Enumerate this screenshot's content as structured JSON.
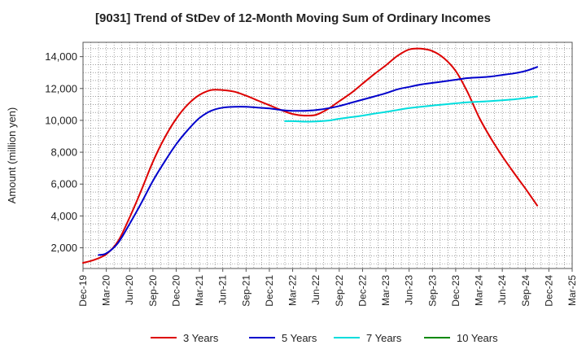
{
  "chart_data": {
    "type": "line",
    "title": "[9031]  Trend of StDev of 12-Month Moving Sum of Ordinary Incomes",
    "xlabel": "",
    "ylabel": "Amount (million yen)",
    "ylim": [
      700,
      14900
    ],
    "yticks": [
      2000,
      4000,
      6000,
      8000,
      10000,
      12000,
      14000
    ],
    "ytick_labels": [
      "2,000",
      "4,000",
      "6,000",
      "8,000",
      "10,000",
      "12,000",
      "14,000"
    ],
    "x_tick_labels": [
      "Dec-19",
      "Mar-20",
      "Jun-20",
      "Sep-20",
      "Dec-20",
      "Mar-21",
      "Jun-21",
      "Sep-21",
      "Dec-21",
      "Mar-22",
      "Jun-22",
      "Sep-22",
      "Dec-22",
      "Mar-23",
      "Jun-23",
      "Sep-23",
      "Dec-23",
      "Mar-24",
      "Jun-24",
      "Sep-24",
      "Dec-24",
      "Mar-25"
    ],
    "grid": true,
    "legend_position": "bottom",
    "series": [
      {
        "name": "3 Years",
        "color": "#dd0000",
        "points": [
          [
            0,
            1050
          ],
          [
            0.5,
            1250
          ],
          [
            1,
            1600
          ],
          [
            1.5,
            2400
          ],
          [
            2,
            3900
          ],
          [
            2.5,
            5600
          ],
          [
            3,
            7400
          ],
          [
            3.5,
            8900
          ],
          [
            4,
            10100
          ],
          [
            4.5,
            11000
          ],
          [
            5,
            11600
          ],
          [
            5.5,
            11900
          ],
          [
            6,
            11900
          ],
          [
            6.5,
            11800
          ],
          [
            7,
            11550
          ],
          [
            7.5,
            11250
          ],
          [
            8,
            10950
          ],
          [
            8.5,
            10650
          ],
          [
            9,
            10400
          ],
          [
            9.5,
            10300
          ],
          [
            10,
            10350
          ],
          [
            10.5,
            10700
          ],
          [
            11,
            11200
          ],
          [
            11.5,
            11700
          ],
          [
            12,
            12300
          ],
          [
            12.5,
            12900
          ],
          [
            13,
            13450
          ],
          [
            13.5,
            14050
          ],
          [
            14,
            14450
          ],
          [
            14.5,
            14500
          ],
          [
            15,
            14350
          ],
          [
            15.5,
            13900
          ],
          [
            16,
            13100
          ],
          [
            16.5,
            11800
          ],
          [
            17,
            10200
          ],
          [
            17.5,
            8900
          ],
          [
            18,
            7750
          ],
          [
            18.5,
            6700
          ],
          [
            19,
            5700
          ],
          [
            19.5,
            4650
          ]
        ]
      },
      {
        "name": "5 Years",
        "color": "#0000cc",
        "points": [
          [
            0.67,
            1550
          ],
          [
            1,
            1650
          ],
          [
            1.5,
            2300
          ],
          [
            2,
            3500
          ],
          [
            2.5,
            4800
          ],
          [
            3,
            6200
          ],
          [
            3.5,
            7400
          ],
          [
            4,
            8500
          ],
          [
            4.5,
            9400
          ],
          [
            5,
            10150
          ],
          [
            5.5,
            10600
          ],
          [
            6,
            10800
          ],
          [
            6.5,
            10850
          ],
          [
            7,
            10850
          ],
          [
            7.5,
            10800
          ],
          [
            8,
            10750
          ],
          [
            8.5,
            10650
          ],
          [
            9,
            10600
          ],
          [
            9.5,
            10600
          ],
          [
            10,
            10650
          ],
          [
            10.5,
            10750
          ],
          [
            11,
            10900
          ],
          [
            11.5,
            11100
          ],
          [
            12,
            11300
          ],
          [
            12.5,
            11500
          ],
          [
            13,
            11700
          ],
          [
            13.5,
            11950
          ],
          [
            14,
            12100
          ],
          [
            14.5,
            12250
          ],
          [
            15,
            12350
          ],
          [
            15.5,
            12450
          ],
          [
            16,
            12550
          ],
          [
            16.5,
            12650
          ],
          [
            17,
            12700
          ],
          [
            17.5,
            12750
          ],
          [
            18,
            12850
          ],
          [
            18.5,
            12950
          ],
          [
            19,
            13100
          ],
          [
            19.5,
            13350
          ]
        ]
      },
      {
        "name": "7 Years",
        "color": "#00dddd",
        "points": [
          [
            8.67,
            9950
          ],
          [
            9,
            9950
          ],
          [
            9.5,
            9920
          ],
          [
            10,
            9930
          ],
          [
            10.5,
            9980
          ],
          [
            11,
            10100
          ],
          [
            11.5,
            10200
          ],
          [
            12,
            10300
          ],
          [
            12.5,
            10420
          ],
          [
            13,
            10530
          ],
          [
            13.5,
            10650
          ],
          [
            14,
            10770
          ],
          [
            14.5,
            10850
          ],
          [
            15,
            10930
          ],
          [
            15.5,
            11000
          ],
          [
            16,
            11070
          ],
          [
            16.5,
            11130
          ],
          [
            17,
            11170
          ],
          [
            17.5,
            11210
          ],
          [
            18,
            11260
          ],
          [
            18.5,
            11320
          ],
          [
            19,
            11400
          ],
          [
            19.5,
            11500
          ]
        ]
      },
      {
        "name": "10 Years",
        "color": "#008800",
        "points": []
      }
    ]
  }
}
